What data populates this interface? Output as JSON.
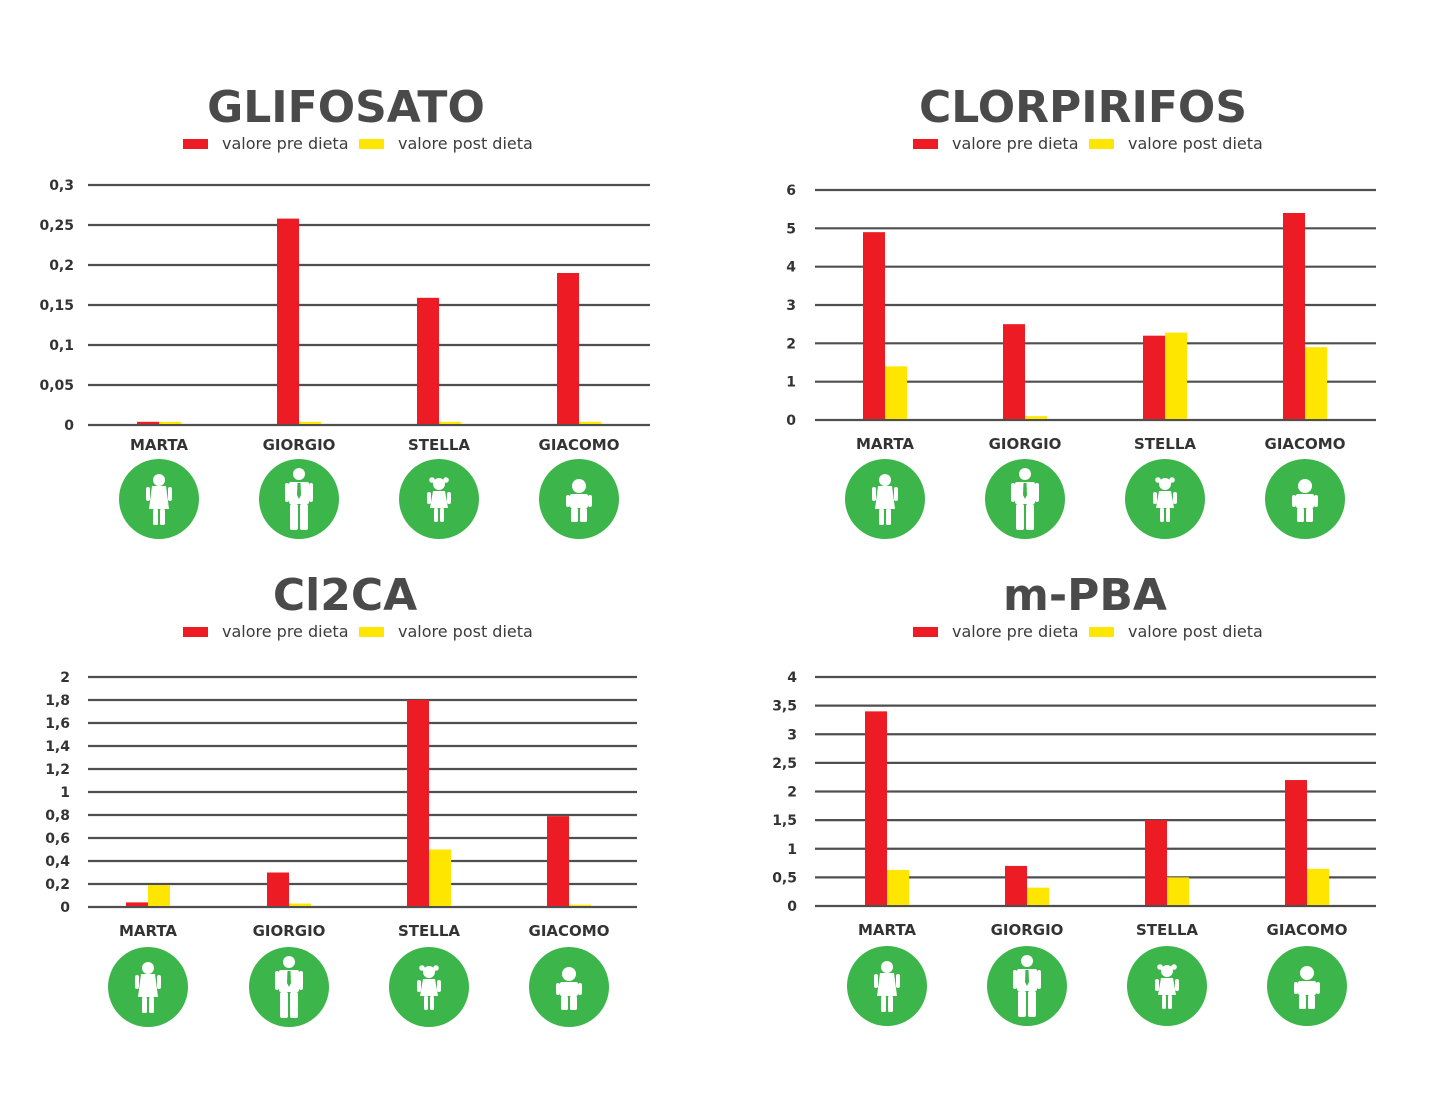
{
  "colors": {
    "pre": "#ed1c24",
    "post": "#ffe600",
    "grid": "#4f4f4f",
    "badge": "#3cb54a",
    "figure": "#ffffff"
  },
  "chart_data": [
    {
      "type": "bar",
      "title": "GLIFOSATO",
      "categories": [
        "MARTA",
        "GIORGIO",
        "STELLA",
        "GIACOMO"
      ],
      "icons": [
        "girl-icon",
        "man-icon",
        "little-girl-icon",
        "boy-icon"
      ],
      "series": [
        {
          "name": "valore pre dieta",
          "values": [
            0.004,
            0.258,
            0.159,
            0.19
          ]
        },
        {
          "name": "valore post dieta",
          "values": [
            0.004,
            0.004,
            0.004,
            0.004
          ]
        }
      ],
      "ylim": [
        0,
        0.3
      ],
      "yticks": [
        0,
        0.05,
        0.1,
        0.15,
        0.2,
        0.25,
        0.3
      ],
      "ytick_labels": [
        "0",
        "0,05",
        "0,1",
        "0,15",
        "0,2",
        "0,25",
        "0,3"
      ],
      "legend": "top-center",
      "grid": true
    },
    {
      "type": "bar",
      "title": "CLORPIRIFOS",
      "categories": [
        "MARTA",
        "GIORGIO",
        "STELLA",
        "GIACOMO"
      ],
      "icons": [
        "girl-icon",
        "man-icon",
        "little-girl-icon",
        "boy-icon"
      ],
      "series": [
        {
          "name": "valore pre dieta",
          "values": [
            4.9,
            2.5,
            2.2,
            5.4
          ]
        },
        {
          "name": "valore post dieta",
          "values": [
            1.4,
            0.1,
            2.28,
            1.9
          ]
        }
      ],
      "ylim": [
        0,
        6
      ],
      "yticks": [
        0,
        1,
        2,
        3,
        4,
        5,
        6
      ],
      "ytick_labels": [
        "0",
        "1",
        "2",
        "3",
        "4",
        "5",
        "6"
      ],
      "legend": "top-center",
      "grid": true
    },
    {
      "type": "bar",
      "title": "Cl2CA",
      "categories": [
        "MARTA",
        "GIORGIO",
        "STELLA",
        "GIACOMO"
      ],
      "icons": [
        "girl-icon",
        "man-icon",
        "little-girl-icon",
        "boy-icon"
      ],
      "series": [
        {
          "name": "valore pre dieta",
          "values": [
            0.04,
            0.3,
            1.8,
            0.79
          ]
        },
        {
          "name": "valore post dieta",
          "values": [
            0.19,
            0.03,
            0.5,
            0.02
          ]
        }
      ],
      "ylim": [
        0,
        2
      ],
      "yticks": [
        0,
        0.2,
        0.4,
        0.6,
        0.8,
        1,
        1.2,
        1.4,
        1.6,
        1.8,
        2
      ],
      "ytick_labels": [
        "0",
        "0,2",
        "0,4",
        "0,6",
        "0,8",
        "1",
        "1,2",
        "1,4",
        "1,6",
        "1,8",
        "2"
      ],
      "legend": "top-center",
      "grid": true
    },
    {
      "type": "bar",
      "title": "m-PBA",
      "categories": [
        "MARTA",
        "GIORGIO",
        "STELLA",
        "GIACOMO"
      ],
      "icons": [
        "girl-icon",
        "man-icon",
        "little-girl-icon",
        "boy-icon"
      ],
      "series": [
        {
          "name": "valore pre dieta",
          "values": [
            3.4,
            0.7,
            1.5,
            2.2
          ]
        },
        {
          "name": "valore post dieta",
          "values": [
            0.63,
            0.32,
            0.5,
            0.65
          ]
        }
      ],
      "ylim": [
        0,
        4
      ],
      "yticks": [
        0,
        0.5,
        1,
        1.5,
        2,
        2.5,
        3,
        3.5,
        4
      ],
      "ytick_labels": [
        "0",
        "0,5",
        "1",
        "1,5",
        "2",
        "2,5",
        "3",
        "3,5",
        "4"
      ],
      "legend": "top-center",
      "grid": true
    }
  ]
}
